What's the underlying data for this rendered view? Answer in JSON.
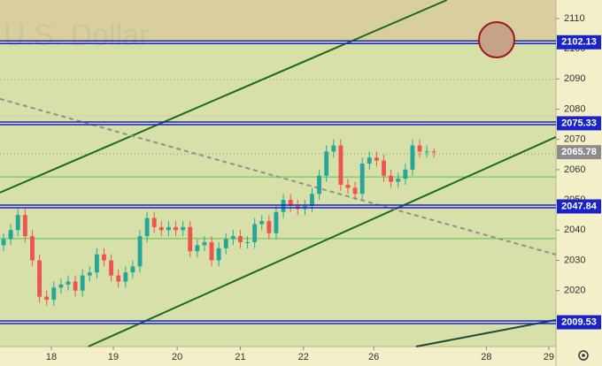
{
  "chart_data": {
    "type": "candlestick",
    "watermark": "U.S. Dollar",
    "open": [
      2035,
      2037,
      2040,
      2045,
      2038,
      2030,
      2018,
      2017,
      2021,
      2022,
      2023,
      2020,
      2025,
      2026,
      2032,
      2030,
      2025,
      2023,
      2026,
      2028,
      2038,
      2044,
      2041,
      2040,
      2041,
      2040,
      2041,
      2033,
      2035,
      2036,
      2030,
      2034,
      2037,
      2038,
      2036,
      2036,
      2042,
      2043,
      2039,
      2046,
      2050,
      2048,
      2047,
      2048,
      2052,
      2058,
      2066,
      2068,
      2055,
      2054,
      2052,
      2062,
      2064,
      2063,
      2058,
      2056,
      2057,
      2060,
      2068,
      2066,
      2066
    ],
    "high": [
      2039,
      2042,
      2047,
      2047,
      2040,
      2032,
      2020,
      2023,
      2024,
      2025,
      2025,
      2027,
      2028,
      2034,
      2034,
      2032,
      2027,
      2028,
      2030,
      2040,
      2046,
      2046,
      2043,
      2043,
      2043,
      2043,
      2043,
      2037,
      2038,
      2038,
      2036,
      2039,
      2040,
      2040,
      2038,
      2044,
      2045,
      2045,
      2048,
      2052,
      2052,
      2050,
      2050,
      2054,
      2060,
      2068,
      2070,
      2070,
      2057,
      2056,
      2064,
      2066,
      2066,
      2065,
      2060,
      2059,
      2062,
      2070,
      2070,
      2068,
      2067
    ],
    "low": [
      2033,
      2035,
      2038,
      2036,
      2028,
      2016,
      2015,
      2015,
      2019,
      2020,
      2018,
      2018,
      2023,
      2024,
      2028,
      2023,
      2021,
      2021,
      2024,
      2026,
      2036,
      2039,
      2038,
      2038,
      2038,
      2038,
      2031,
      2031,
      2033,
      2028,
      2028,
      2032,
      2035,
      2034,
      2034,
      2034,
      2040,
      2037,
      2037,
      2044,
      2046,
      2045,
      2045,
      2046,
      2050,
      2056,
      2064,
      2053,
      2052,
      2050,
      2050,
      2060,
      2061,
      2056,
      2054,
      2054,
      2055,
      2058,
      2064,
      2064,
      2064
    ],
    "close": [
      2037,
      2040,
      2045,
      2038,
      2030,
      2018,
      2017,
      2021,
      2022,
      2023,
      2020,
      2025,
      2026,
      2032,
      2030,
      2025,
      2023,
      2026,
      2028,
      2038,
      2044,
      2041,
      2040,
      2041,
      2040,
      2041,
      2033,
      2035,
      2036,
      2030,
      2034,
      2037,
      2038,
      2036,
      2036,
      2042,
      2043,
      2039,
      2046,
      2050,
      2048,
      2047,
      2048,
      2052,
      2058,
      2066,
      2068,
      2055,
      2054,
      2052,
      2062,
      2064,
      2063,
      2058,
      2056,
      2057,
      2060,
      2068,
      2066,
      2066,
      2065.78
    ],
    "up_color": "#26a69a",
    "down_color": "#ef5350",
    "xlim": [
      -0.5,
      77.0
    ],
    "xticks": [
      {
        "value": 6.66,
        "label": "18"
      },
      {
        "value": 15.3,
        "label": "19"
      },
      {
        "value": 24.2,
        "label": "20"
      },
      {
        "value": 33.0,
        "label": "21"
      },
      {
        "value": 41.8,
        "label": "22"
      },
      {
        "value": 51.6,
        "label": "26"
      },
      {
        "value": 67.3,
        "label": "28"
      },
      {
        "value": 76.0,
        "label": "29"
      }
    ],
    "ylim": [
      2001.5,
      2116.1
    ],
    "yticks": [
      2020,
      2030,
      2040,
      2050,
      2060,
      2070,
      2080,
      2090,
      2100,
      2110
    ],
    "levels": [
      {
        "value": 2102.13,
        "color": "#1a23c8"
      },
      {
        "value": 2075.33,
        "color": "#1a23c8"
      },
      {
        "value": 2047.84,
        "color": "#1a23c8"
      },
      {
        "value": 2009.53,
        "color": "#1a23c8"
      }
    ],
    "lines": [
      {
        "value": 2089.8,
        "color": "#9aa27a",
        "style": "dotted"
      },
      {
        "value": 2077.8,
        "color": "#c8d49a",
        "style": "solid"
      },
      {
        "value": 2065.2,
        "color": "#8a8f70",
        "style": "dotted"
      },
      {
        "value": 2057.6,
        "color": "#56c456",
        "style": "solid"
      },
      {
        "value": 2037.2,
        "color": "#56c456",
        "style": "solid"
      }
    ],
    "trendlines": [
      {
        "x": [
          -0.5,
          61.8
        ],
        "y": [
          2052.4,
          2116.1
        ],
        "color": "#1c6b1c",
        "style": "solid"
      },
      {
        "x": [
          11.8,
          77.0
        ],
        "y": [
          2001.5,
          2070.8
        ],
        "color": "#1c6b1c",
        "style": "solid"
      },
      {
        "x": [
          57.5,
          77.0
        ],
        "y": [
          2001.5,
          2010.3
        ],
        "color": "#1c4b3c",
        "style": "solid"
      },
      {
        "x": [
          -0.5,
          77.0
        ],
        "y": [
          2083.4,
          2031.9
        ],
        "color": "#8f8f8f",
        "style": "dashed"
      }
    ],
    "current_color": "#8c8c8c"
  }
}
